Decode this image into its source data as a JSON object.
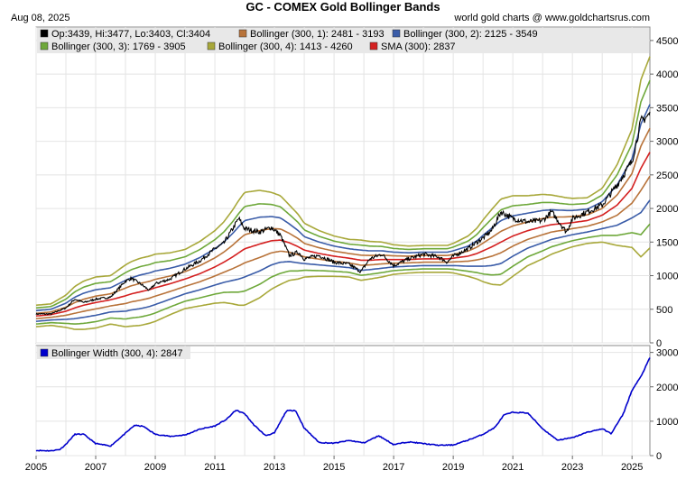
{
  "header": {
    "title": "GC - COMEX Gold Bollinger Bands",
    "date": "Aug 08, 2025",
    "credit": "world gold charts @ www.goldchartsrus.com"
  },
  "colors": {
    "price": "#000000",
    "band1": "#b8733a",
    "band2": "#3a5ca8",
    "band3": "#6ea83a",
    "band4": "#a8a83a",
    "sma": "#d42020",
    "width": "#0000cc",
    "plot_bg": "#ffffff",
    "legend_bg": "#e8e8e8",
    "grid": "#e4e4e4"
  },
  "chart_data": [
    {
      "type": "line",
      "panel": "price",
      "legend": [
        {
          "key": "price",
          "label": "Op:3439, Hi:3477, Lo:3403, Cl:3404"
        },
        {
          "key": "band1",
          "label": "Bollinger (300, 1): 2481 - 3193"
        },
        {
          "key": "band2",
          "label": "Bollinger (300, 2): 2125 - 3549"
        },
        {
          "key": "band3",
          "label": "Bollinger (300, 3): 1769 - 3905"
        },
        {
          "key": "band4",
          "label": "Bollinger (300, 4): 1413 - 4260"
        },
        {
          "key": "sma",
          "label": "SMA (300): 2837"
        }
      ],
      "x_ticks": [
        "2005",
        "2007",
        "2009",
        "2011",
        "2013",
        "2015",
        "2017",
        "2019",
        "2021",
        "2023",
        "2025"
      ],
      "y_ticks": [
        "0",
        "500",
        "1000",
        "1500",
        "2000",
        "2500",
        "3000",
        "3500",
        "4000",
        "4500"
      ],
      "xlim": [
        2005.0,
        2025.6
      ],
      "ylim": [
        0,
        4700
      ],
      "x": [
        2005.0,
        2005.5,
        2006.0,
        2006.3,
        2006.6,
        2007.0,
        2007.5,
        2008.0,
        2008.2,
        2008.5,
        2008.8,
        2009.0,
        2009.5,
        2010.0,
        2010.5,
        2011.0,
        2011.3,
        2011.6,
        2011.8,
        2012.0,
        2012.5,
        2012.9,
        2013.2,
        2013.5,
        2013.8,
        2014.0,
        2014.5,
        2015.0,
        2015.5,
        2015.9,
        2016.2,
        2016.6,
        2017.0,
        2017.5,
        2018.0,
        2018.5,
        2018.8,
        2019.0,
        2019.5,
        2019.8,
        2020.0,
        2020.3,
        2020.6,
        2021.0,
        2021.5,
        2022.0,
        2022.3,
        2022.8,
        2023.0,
        2023.5,
        2024.0,
        2024.5,
        2025.0,
        2025.3,
        2025.6
      ],
      "series": [
        {
          "key": "price",
          "values": [
            430,
            430,
            520,
            650,
            600,
            650,
            680,
            920,
            960,
            880,
            780,
            880,
            950,
            1100,
            1220,
            1400,
            1480,
            1700,
            1850,
            1700,
            1650,
            1720,
            1600,
            1300,
            1350,
            1250,
            1300,
            1200,
            1170,
            1060,
            1250,
            1320,
            1150,
            1250,
            1320,
            1280,
            1200,
            1290,
            1400,
            1500,
            1560,
            1680,
            1950,
            1850,
            1800,
            1820,
            1950,
            1650,
            1850,
            1950,
            2050,
            2350,
            2700,
            3300,
            3404
          ]
        },
        {
          "key": "sma",
          "values": [
            400,
            420,
            470,
            520,
            560,
            600,
            640,
            700,
            730,
            760,
            790,
            820,
            880,
            950,
            1030,
            1130,
            1200,
            1280,
            1340,
            1400,
            1470,
            1520,
            1530,
            1490,
            1430,
            1380,
            1330,
            1290,
            1260,
            1230,
            1230,
            1240,
            1240,
            1240,
            1250,
            1250,
            1250,
            1260,
            1290,
            1330,
            1370,
            1430,
            1500,
            1590,
            1670,
            1730,
            1760,
            1780,
            1790,
            1820,
            1900,
            2050,
            2300,
            2600,
            2837
          ]
        }
      ],
      "sigma": [
        40,
        40,
        60,
        80,
        90,
        95,
        90,
        115,
        120,
        125,
        125,
        125,
        115,
        110,
        120,
        135,
        150,
        175,
        195,
        210,
        200,
        180,
        165,
        140,
        120,
        100,
        85,
        75,
        70,
        75,
        70,
        65,
        55,
        50,
        50,
        50,
        50,
        55,
        75,
        95,
        115,
        140,
        160,
        150,
        130,
        120,
        110,
        95,
        90,
        85,
        100,
        150,
        220,
        330,
        356
      ]
    },
    {
      "type": "line",
      "panel": "width",
      "legend": [
        {
          "key": "width",
          "label": "Bollinger Width (300, 4): 2847"
        }
      ],
      "y_ticks": [
        "0",
        "1000",
        "2000",
        "3000"
      ],
      "xlim": [
        2005.0,
        2025.6
      ],
      "ylim": [
        0,
        3200
      ],
      "x": [
        2005.0,
        2005.5,
        2005.8,
        2006.0,
        2006.3,
        2006.6,
        2007.0,
        2007.5,
        2008.0,
        2008.3,
        2008.6,
        2009.0,
        2009.5,
        2010.0,
        2010.5,
        2011.0,
        2011.4,
        2011.7,
        2012.0,
        2012.3,
        2012.7,
        2013.0,
        2013.4,
        2013.7,
        2014.0,
        2014.5,
        2015.0,
        2015.5,
        2016.0,
        2016.5,
        2017.0,
        2017.5,
        2018.0,
        2018.5,
        2019.0,
        2019.5,
        2020.0,
        2020.4,
        2020.7,
        2021.0,
        2021.5,
        2022.0,
        2022.5,
        2023.0,
        2023.5,
        2024.0,
        2024.3,
        2024.7,
        2025.0,
        2025.3,
        2025.6
      ],
      "series": [
        {
          "key": "width",
          "values": [
            150,
            140,
            180,
            330,
            620,
            620,
            350,
            280,
            650,
            880,
            850,
            620,
            560,
            600,
            770,
            860,
            1060,
            1320,
            1220,
            900,
            580,
            660,
            1300,
            1320,
            800,
            380,
            360,
            440,
            370,
            580,
            320,
            400,
            350,
            300,
            310,
            450,
            620,
            820,
            1180,
            1260,
            1240,
            780,
            450,
            520,
            680,
            780,
            640,
            1200,
            1900,
            2300,
            2847
          ]
        }
      ]
    }
  ]
}
